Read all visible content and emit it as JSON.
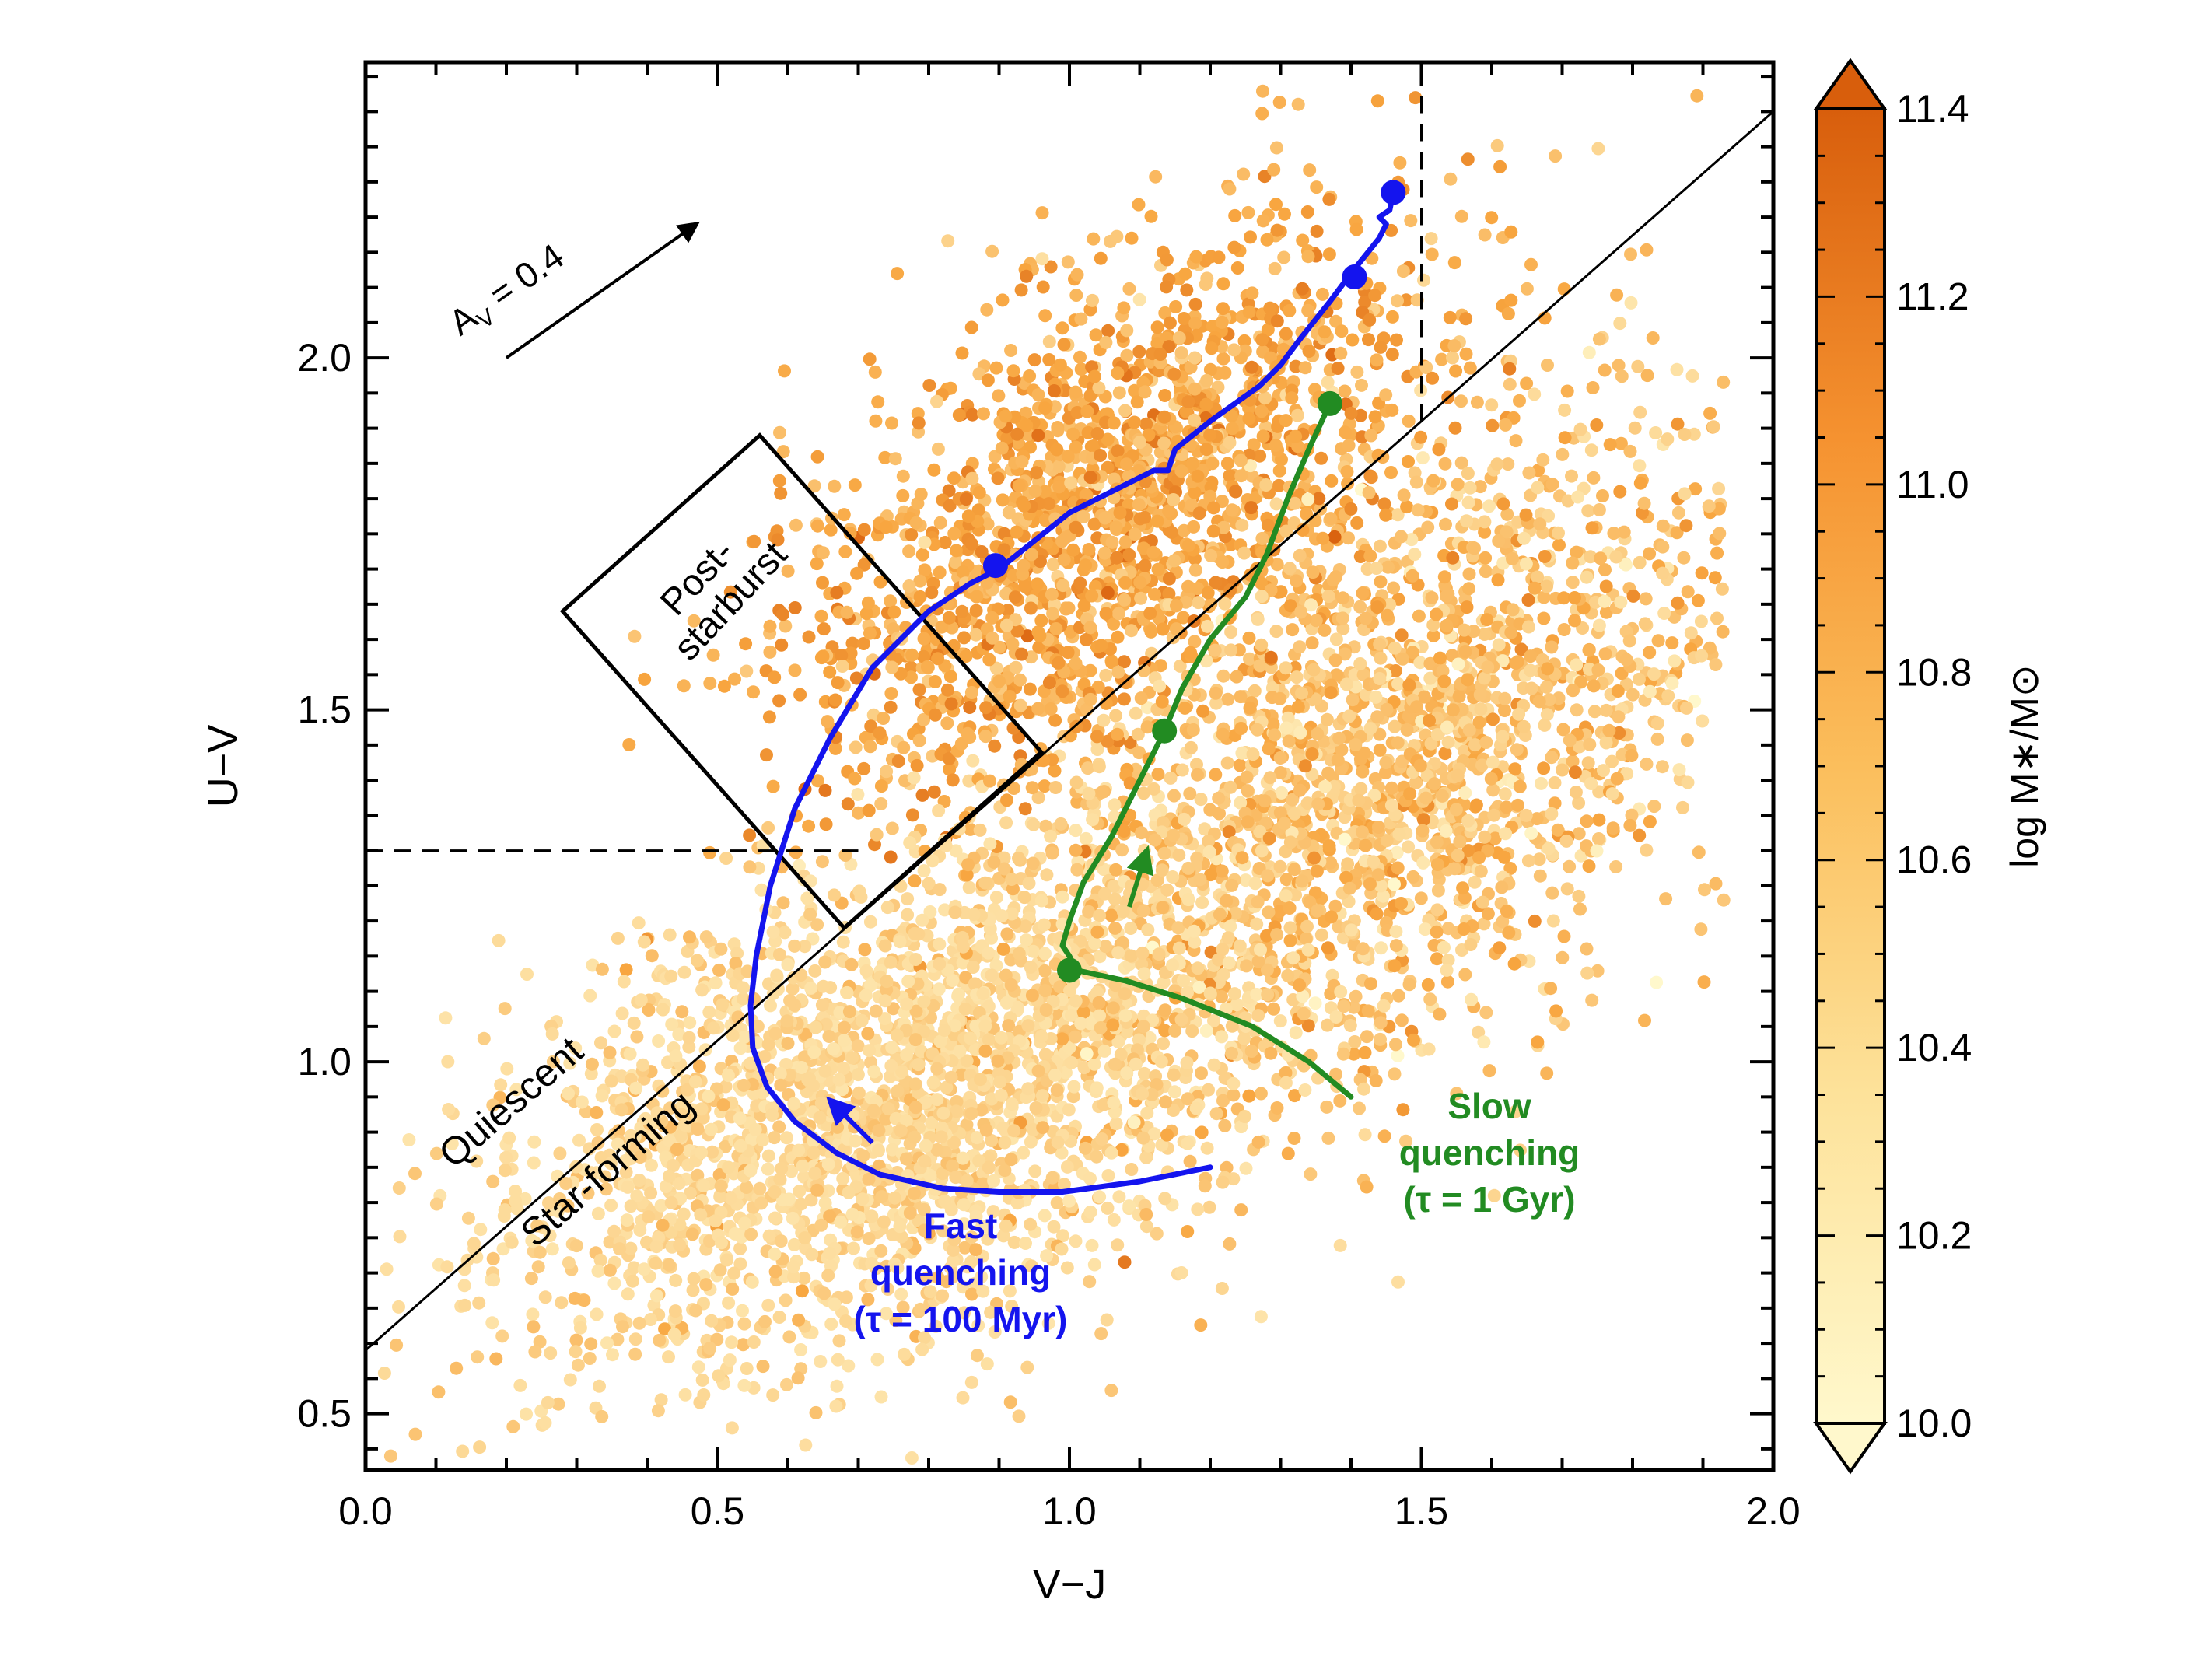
{
  "chart_data": {
    "type": "scatter",
    "xlabel": "V−J",
    "ylabel": "U−V",
    "xlim": [
      0.0,
      2.0
    ],
    "ylim": [
      0.42,
      2.42
    ],
    "xticks": [
      "0.0",
      "0.5",
      "1.0",
      "1.5",
      "2.0"
    ],
    "yticks": [
      "0.5",
      "1.0",
      "1.5",
      "2.0"
    ],
    "xtick_values": [
      0.0,
      0.5,
      1.0,
      1.5,
      2.0
    ],
    "ytick_values": [
      0.5,
      1.0,
      1.5,
      2.0
    ],
    "colorbar": {
      "label": "log M∗/M⊙",
      "range": [
        10.0,
        11.4
      ],
      "ticks": [
        "10.0",
        "10.2",
        "10.4",
        "10.6",
        "10.8",
        "11.0",
        "11.2",
        "11.4"
      ],
      "tick_values": [
        10.0,
        10.2,
        10.4,
        10.6,
        10.8,
        11.0,
        11.2,
        11.4
      ],
      "low_color": "#fff8cc",
      "mid_color": "#f8a640",
      "high_color": "#d85e0c"
    },
    "regions": {
      "quiescent_label": "Quiescent",
      "starforming_label": "Star-forming",
      "selection_line": [
        [
          0.0,
          0.59
        ],
        [
          2.0,
          2.35
        ]
      ],
      "dashed_vertical": {
        "x": 1.5,
        "from_y": 1.91,
        "to_y": 2.42
      },
      "dashed_horizontal": {
        "y": 1.3,
        "from_x": 0.0,
        "to_x": 0.7
      },
      "post_starburst_box": [
        [
          0.28,
          1.64
        ],
        [
          0.56,
          1.89
        ],
        [
          0.96,
          1.44
        ],
        [
          0.68,
          1.19
        ]
      ],
      "post_starburst_label": [
        "Post-",
        "starburst"
      ]
    },
    "dust_vector": {
      "label": "A",
      "label_sub": "V",
      "label_rest": " = 0.4",
      "from": [
        0.2,
        2.0
      ],
      "to": [
        0.47,
        2.19
      ]
    },
    "series": [
      {
        "name": "Fast quenching",
        "labels": [
          "Fast",
          "quenching",
          "(τ = 100 Myr)"
        ],
        "color": "#1414ee",
        "track": [
          [
            1.2,
            0.85
          ],
          [
            1.1,
            0.83
          ],
          [
            0.99,
            0.815
          ],
          [
            0.9,
            0.815
          ],
          [
            0.82,
            0.82
          ],
          [
            0.73,
            0.84
          ],
          [
            0.67,
            0.87
          ],
          [
            0.61,
            0.915
          ],
          [
            0.57,
            0.965
          ],
          [
            0.55,
            1.02
          ],
          [
            0.547,
            1.08
          ],
          [
            0.555,
            1.15
          ],
          [
            0.575,
            1.25
          ],
          [
            0.61,
            1.36
          ],
          [
            0.66,
            1.46
          ],
          [
            0.72,
            1.56
          ],
          [
            0.8,
            1.64
          ],
          [
            0.86,
            1.68
          ],
          [
            0.9,
            1.7
          ],
          [
            0.95,
            1.74
          ],
          [
            1.0,
            1.78
          ],
          [
            1.06,
            1.81
          ],
          [
            1.12,
            1.84
          ],
          [
            1.14,
            1.84
          ],
          [
            1.15,
            1.87
          ],
          [
            1.2,
            1.91
          ],
          [
            1.27,
            1.96
          ],
          [
            1.3,
            1.99
          ],
          [
            1.33,
            2.03
          ],
          [
            1.37,
            2.08
          ],
          [
            1.4,
            2.12
          ],
          [
            1.44,
            2.17
          ],
          [
            1.45,
            2.19
          ],
          [
            1.44,
            2.2
          ],
          [
            1.455,
            2.21
          ],
          [
            1.46,
            2.235
          ]
        ],
        "markers": [
          [
            0.895,
            1.705
          ],
          [
            1.405,
            2.115
          ],
          [
            1.46,
            2.235
          ]
        ],
        "arrow": {
          "from": [
            0.72,
            0.885
          ],
          "to": [
            0.66,
            0.945
          ]
        }
      },
      {
        "name": "Slow quenching",
        "labels": [
          "Slow",
          "quenching",
          "(τ = 1 Gyr)"
        ],
        "color": "#228b22",
        "track": [
          [
            1.4,
            0.95
          ],
          [
            1.34,
            1.0
          ],
          [
            1.26,
            1.05
          ],
          [
            1.16,
            1.09
          ],
          [
            1.08,
            1.115
          ],
          [
            1.01,
            1.13
          ],
          [
            1.0,
            1.15
          ],
          [
            0.99,
            1.165
          ],
          [
            1.0,
            1.2
          ],
          [
            1.02,
            1.255
          ],
          [
            1.06,
            1.32
          ],
          [
            1.1,
            1.4
          ],
          [
            1.135,
            1.47
          ],
          [
            1.16,
            1.53
          ],
          [
            1.2,
            1.6
          ],
          [
            1.25,
            1.66
          ],
          [
            1.28,
            1.72
          ],
          [
            1.31,
            1.8
          ],
          [
            1.34,
            1.87
          ],
          [
            1.37,
            1.935
          ]
        ],
        "markers": [
          [
            1.0,
            1.13
          ],
          [
            1.135,
            1.47
          ],
          [
            1.37,
            1.935
          ]
        ],
        "arrow": {
          "from": [
            1.085,
            1.22
          ],
          "to": [
            1.11,
            1.3
          ]
        }
      }
    ]
  }
}
